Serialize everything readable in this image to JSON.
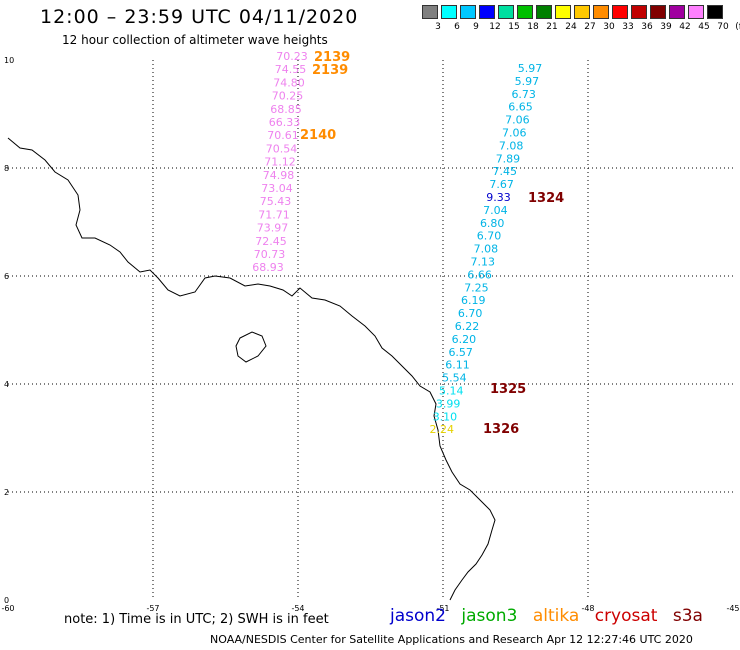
{
  "header": {
    "title": "12:00 – 23:59 UTC 04/11/2020",
    "subtitle": "12 hour collection of altimeter wave heights"
  },
  "scale": {
    "labels": [
      "3",
      "6",
      "9",
      "12",
      "15",
      "18",
      "21",
      "24",
      "27",
      "30",
      "33",
      "36",
      "39",
      "42",
      "45",
      "70"
    ],
    "unit": "(ft)",
    "colors": [
      "#808080",
      "#00ffff",
      "#00c8ff",
      "#0000ff",
      "#00e0a0",
      "#00c000",
      "#008000",
      "#ffff00",
      "#ffc800",
      "#ff8c00",
      "#ff0000",
      "#c00000",
      "#800000",
      "#a000a0",
      "#ff80ff",
      "#000000"
    ]
  },
  "axes": {
    "x_ticks": [
      "-60",
      "-57",
      "-54",
      "-51",
      "-48",
      "-45"
    ],
    "y_ticks": [
      "0",
      "2",
      "4",
      "6",
      "8",
      "10"
    ]
  },
  "tracks": {
    "pink": {
      "color": "#ee82ee",
      "values": [
        "70.23",
        "74.55",
        "74.80",
        "70.25",
        "68.85",
        "66.33",
        "70.61",
        "70.54",
        "71.12",
        "74.98",
        "73.04",
        "75.43",
        "71.71",
        "73.97",
        "72.45",
        "70.73",
        "68.93"
      ]
    },
    "cyan": {
      "color": "#00b4e6",
      "values": [
        "5.97",
        "5.97",
        "6.73",
        "6.65",
        "7.06",
        "7.06",
        "7.08",
        "7.89",
        "7.45",
        "7.67",
        "9.33",
        "7.04",
        "6.80",
        "6.70",
        "7.08",
        "7.13",
        "6.66",
        "7.25",
        "6.19",
        "6.70",
        "6.22",
        "6.20",
        "6.57",
        "6.11",
        "5.54",
        "5.14",
        "3.99",
        "3.10",
        "2.24"
      ]
    }
  },
  "pass_labels": [
    {
      "text": "2139",
      "color": "#ff8c00"
    },
    {
      "text": "2139",
      "color": "#ff8c00"
    },
    {
      "text": "2140",
      "color": "#ff8c00"
    },
    {
      "text": "1324",
      "color": "#800000"
    },
    {
      "text": "1325",
      "color": "#800000"
    },
    {
      "text": "1326",
      "color": "#800000"
    }
  ],
  "satellites": [
    {
      "name": "jason2",
      "color": "#0000cc"
    },
    {
      "name": "jason3",
      "color": "#00aa00"
    },
    {
      "name": "altika",
      "color": "#ff8c00"
    },
    {
      "name": "cryosat",
      "color": "#cc0000"
    },
    {
      "name": "s3a",
      "color": "#800000"
    }
  ],
  "footer": {
    "note": "note: 1) Time is in UTC; 2) SWH is in feet",
    "credit": "NOAA/NESDIS Center for Satellite Applications and Research    Apr 12 12:27:46 UTC 2020"
  }
}
